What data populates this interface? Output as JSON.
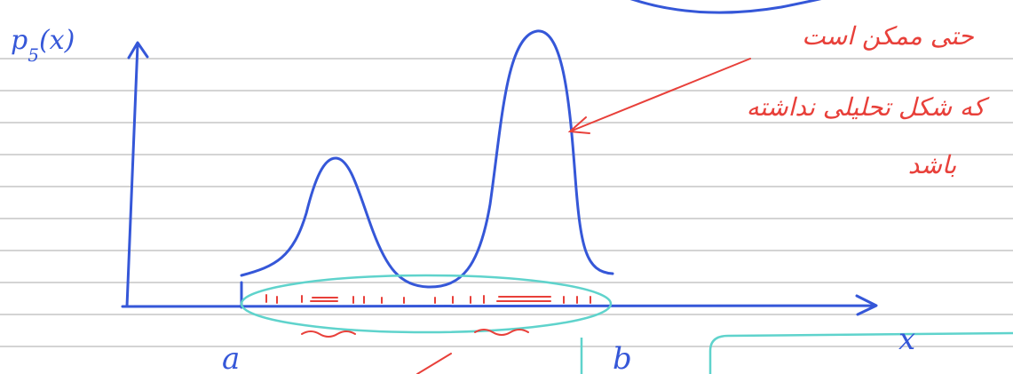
{
  "y_label": {
    "base": "p",
    "subscript": "5",
    "argument": "(x)"
  },
  "x_label": "x",
  "interval": {
    "start": "a",
    "end": "b"
  },
  "note": {
    "lines": [
      "حتی ممکن است",
      "که شکل تحلیلی نداشته",
      "باشد"
    ]
  }
}
